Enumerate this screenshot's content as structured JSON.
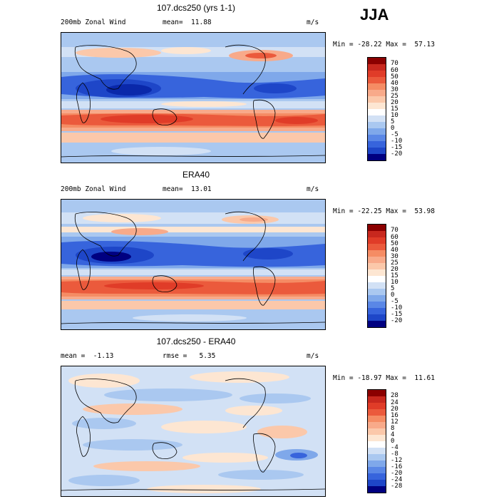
{
  "season": "JJA",
  "panels": [
    {
      "title": "107.dcs250 (yrs 1-1)",
      "left_label": "200mb Zonal Wind",
      "mean_text": "mean=  11.88",
      "units": "m/s",
      "minmax": "Min = -28.22 Max =  57.13",
      "levels": [
        "70",
        "60",
        "50",
        "40",
        "30",
        "25",
        "20",
        "15",
        "10",
        "5",
        "0",
        "-5",
        "-10",
        "-15",
        "-20"
      ],
      "colors": [
        "#8b0000",
        "#c8281e",
        "#e03c28",
        "#eb5a3c",
        "#f58c64",
        "#f8aa8a",
        "#fbc8aa",
        "#fde6d2",
        "#d2e1f5",
        "#aac8f0",
        "#7fa8ea",
        "#5a87e6",
        "#3764dc",
        "#1e46c8",
        "#0a28aa",
        "#000080"
      ]
    },
    {
      "title": "ERA40",
      "left_label": "200mb Zonal Wind",
      "mean_text": "mean=  13.01",
      "units": "m/s",
      "minmax": "Min = -22.25 Max =  53.98",
      "levels": [
        "70",
        "60",
        "50",
        "40",
        "30",
        "25",
        "20",
        "15",
        "10",
        "5",
        "0",
        "-5",
        "-10",
        "-15",
        "-20"
      ],
      "colors": [
        "#8b0000",
        "#c8281e",
        "#e03c28",
        "#eb5a3c",
        "#f58c64",
        "#f8aa8a",
        "#fbc8aa",
        "#fde6d2",
        "#d2e1f5",
        "#aac8f0",
        "#7fa8ea",
        "#5a87e6",
        "#3764dc",
        "#1e46c8",
        "#0a28aa",
        "#000080"
      ]
    },
    {
      "title": "107.dcs250 - ERA40",
      "left_label": "mean =  -1.13",
      "mean_text": "rmse =   5.35",
      "units": "m/s",
      "minmax": "Min = -18.97 Max =  11.61",
      "levels": [
        "28",
        "24",
        "20",
        "16",
        "12",
        "8",
        "4",
        "0",
        "-4",
        "-8",
        "-12",
        "-16",
        "-20",
        "-24",
        "-28"
      ],
      "colors": [
        "#8b0000",
        "#c8281e",
        "#e03c28",
        "#eb5a3c",
        "#f58c64",
        "#f8aa8a",
        "#fbc8aa",
        "#fde6d2",
        "#d2e1f5",
        "#aac8f0",
        "#7fa8ea",
        "#5a87e6",
        "#3764dc",
        "#1e46c8",
        "#0a28aa",
        "#000080"
      ]
    }
  ]
}
